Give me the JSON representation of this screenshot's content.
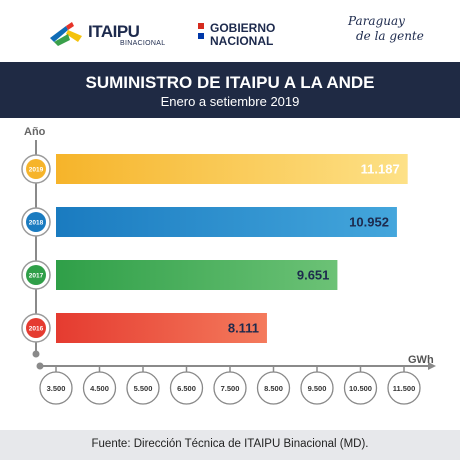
{
  "header": {
    "itaipu_brand": "ITAIPU",
    "itaipu_sub": "BINACIONAL",
    "gob_line1": "GOBIERNO",
    "gob_line2": "NACIONAL",
    "paraguay_line1": "Paraguay",
    "paraguay_line2": "de la gente"
  },
  "banner": {
    "title": "SUMINISTRO DE ITAIPU A LA ANDE",
    "subtitle": "Enero a setiembre  2019"
  },
  "footer": {
    "source": "Fuente: Dirección Técnica de ITAIPU Binacional (MD)."
  },
  "chart_data": {
    "type": "bar",
    "orientation": "horizontal",
    "ylabel": "Año",
    "xlabel": "GWh",
    "categories": [
      "2019",
      "2018",
      "2017",
      "2016"
    ],
    "values": [
      11187,
      10952,
      9651,
      8111
    ],
    "value_labels": [
      "11.187",
      "10.952",
      "9.651",
      "8.111"
    ],
    "xticks": [
      3500,
      4500,
      5500,
      6500,
      7500,
      8500,
      9500,
      10500,
      11500
    ],
    "xtick_labels": [
      "3.500",
      "4.500",
      "5.500",
      "6.500",
      "7.500",
      "8.500",
      "9.500",
      "10.500",
      "11.500"
    ],
    "xlim": [
      3500,
      11500
    ],
    "colors": [
      [
        "#f6b42a",
        "#fde187"
      ],
      [
        "#1a7bc0",
        "#44a6dc"
      ],
      [
        "#2f9f48",
        "#6cc276"
      ],
      [
        "#e53b30",
        "#f47a5c"
      ]
    ],
    "circle_colors": [
      "#f6b42a",
      "#1a7bc0",
      "#2f9f48",
      "#e53b30"
    ],
    "grid": false
  }
}
